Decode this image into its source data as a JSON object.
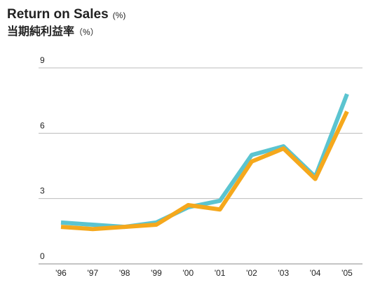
{
  "chart_data": {
    "type": "line",
    "title": "Return on Sales",
    "title_unit": "(%)",
    "subtitle": "当期純利益率",
    "subtitle_unit": "（%）",
    "categories": [
      "'96",
      "'97",
      "'98",
      "'99",
      "'00",
      "'01",
      "'02",
      "'03",
      "'04",
      "'05"
    ],
    "series": [
      {
        "color": "#5bc4d0",
        "values": [
          1.9,
          1.8,
          1.7,
          1.9,
          2.6,
          2.9,
          5.0,
          5.4,
          4.0,
          7.8
        ]
      },
      {
        "color": "#f5a81c",
        "values": [
          1.7,
          1.6,
          1.7,
          1.8,
          2.7,
          2.5,
          4.7,
          5.3,
          3.9,
          7.0
        ]
      }
    ],
    "ylim": [
      0,
      9
    ],
    "yticks": [
      0,
      3,
      6,
      9
    ],
    "grid": true
  }
}
